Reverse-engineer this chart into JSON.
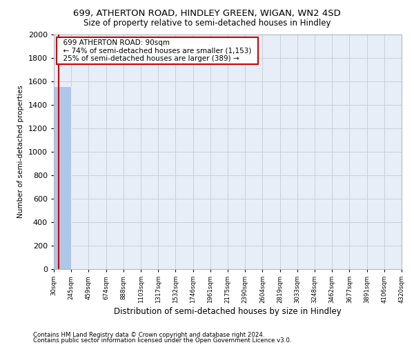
{
  "title1": "699, ATHERTON ROAD, HINDLEY GREEN, WIGAN, WN2 4SD",
  "title2": "Size of property relative to semi-detached houses in Hindley",
  "xlabel": "Distribution of semi-detached houses by size in Hindley",
  "ylabel": "Number of semi-detached properties",
  "footer1": "Contains HM Land Registry data © Crown copyright and database right 2024.",
  "footer2": "Contains public sector information licensed under the Open Government Licence v3.0.",
  "annotation_line1": "699 ATHERTON ROAD: 90sqm",
  "annotation_line2": "← 74% of semi-detached houses are smaller (1,153)",
  "annotation_line3": "25% of semi-detached houses are larger (389) →",
  "bar_edges": [
    30,
    245,
    459,
    674,
    888,
    1103,
    1317,
    1532,
    1746,
    1961,
    2175,
    2390,
    2604,
    2819,
    3033,
    3248,
    3462,
    3677,
    3891,
    4106,
    4320
  ],
  "bar_heights": [
    1560,
    3,
    2,
    1,
    1,
    0,
    0,
    0,
    0,
    0,
    0,
    0,
    0,
    0,
    0,
    0,
    0,
    0,
    0,
    0
  ],
  "bar_color": "#aec6e8",
  "bar_edge_color": "#aec6e8",
  "vline_color": "#cc0000",
  "vline_x": 90,
  "annotation_box_color": "#cc0000",
  "grid_color": "#c8d0dc",
  "background_color": "#e8eef8",
  "ylim": [
    0,
    2000
  ],
  "yticks": [
    0,
    200,
    400,
    600,
    800,
    1000,
    1200,
    1400,
    1600,
    1800,
    2000
  ]
}
